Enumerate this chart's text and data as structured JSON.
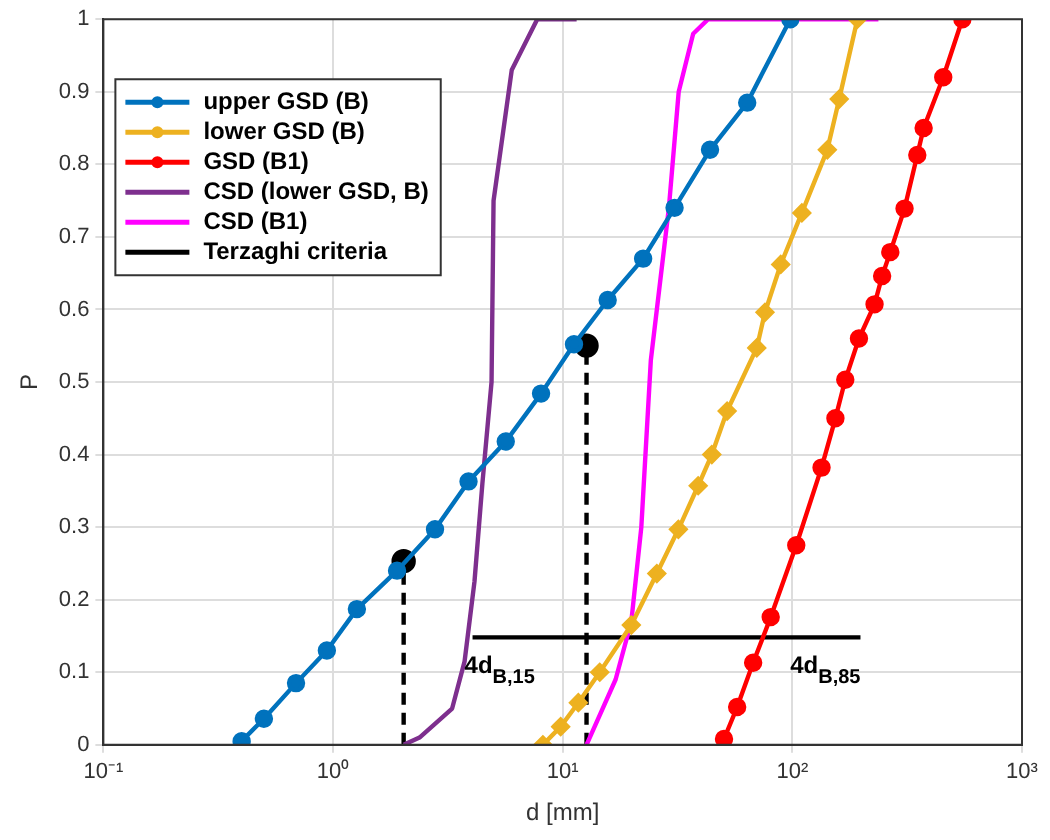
{
  "chart_data": {
    "type": "line",
    "xlabel": "d [mm]",
    "ylabel": "P",
    "log": "x",
    "grid": true,
    "legend": "top left",
    "xlim": [
      0.1,
      1000
    ],
    "xticks": [
      {
        "value": 0.1,
        "label": "10⁻¹"
      },
      {
        "value": 1,
        "label": "10⁰"
      },
      {
        "value": 10,
        "label": "10¹"
      },
      {
        "value": 100,
        "label": "10²"
      },
      {
        "value": 1000,
        "label": "10³"
      }
    ],
    "ylim": [
      0,
      1
    ],
    "yticks": [
      0,
      0.1,
      0.2,
      0.3,
      0.4,
      0.5,
      0.6,
      0.7,
      0.8,
      0.9,
      1
    ],
    "series": [
      {
        "name": "upper GSD (B)",
        "color": "#0072bd",
        "marker": "circle",
        "x": [
          0.4,
          0.5,
          0.69,
          0.94,
          1.27,
          1.9,
          2.78,
          3.89,
          5.65,
          8.05,
          11.2,
          15.7,
          22.4,
          30.7,
          43.8,
          63.6,
          98
        ],
        "values": [
          0.005,
          0.036,
          0.085,
          0.13,
          0.187,
          0.24,
          0.297,
          0.363,
          0.418,
          0.484,
          0.552,
          0.613,
          0.67,
          0.74,
          0.82,
          0.885,
          1
        ]
      },
      {
        "name": "lower GSD (B)",
        "color": "#edb120",
        "marker": "diamond",
        "x": [
          8.2,
          9.8,
          11.7,
          14.5,
          19.9,
          25.7,
          31.9,
          38.9,
          44.6,
          52,
          70,
          76,
          89,
          110,
          142,
          160,
          192
        ],
        "values": [
          0,
          0.025,
          0.058,
          0.1,
          0.165,
          0.236,
          0.297,
          0.357,
          0.4,
          0.46,
          0.547,
          0.596,
          0.662,
          0.733,
          0.82,
          0.89,
          1
        ]
      },
      {
        "name": "GSD (B1)",
        "color": "#ff0000",
        "marker": "circle",
        "x": [
          50.4,
          57.5,
          67.5,
          80.5,
          104,
          134,
          154,
          170,
          195,
          228,
          246,
          267,
          308,
          350,
          373,
          454,
          550
        ],
        "values": [
          0.008,
          0.052,
          0.113,
          0.176,
          0.275,
          0.382,
          0.45,
          0.503,
          0.56,
          0.607,
          0.646,
          0.679,
          0.739,
          0.813,
          0.85,
          0.92,
          1
        ]
      },
      {
        "name": "CSD (lower GSD, B)",
        "color": "#7e2f8e",
        "marker": "none",
        "x": [
          2.03,
          2.38,
          3.3,
          3.74,
          4.13,
          4.47,
          4.9,
          5.0,
          6.0,
          7.75,
          11.5
        ],
        "values": [
          0,
          0.01,
          0.05,
          0.115,
          0.225,
          0.36,
          0.5,
          0.75,
          0.93,
          1,
          1
        ]
      },
      {
        "name": "CSD (B1)",
        "color": "#ff00ff",
        "marker": "none",
        "x": [
          12.7,
          17,
          19.9,
          22,
          24.2,
          29,
          32,
          37,
          43,
          237
        ],
        "values": [
          0,
          0.09,
          0.17,
          0.3,
          0.53,
          0.74,
          0.9,
          0.98,
          1,
          1
        ]
      },
      {
        "name": "Terzaghi criteria",
        "color": "#000000",
        "marker": "none",
        "x": [
          4.05,
          198
        ],
        "values": [
          0.148,
          0.148
        ]
      },
      {
        "type": "line",
        "color": "#000000",
        "marker": "none",
        "line_style": "dashed",
        "x": [
          2.03,
          2.03
        ],
        "values": [
          0,
          0.253
        ]
      },
      {
        "type": "line",
        "color": "#000000",
        "marker": "none",
        "line_style": "dashed",
        "x": [
          12.7,
          12.7
        ],
        "values": [
          0,
          0.55
        ]
      },
      {
        "type": "scatter",
        "color": "#000000",
        "marker": "circle",
        "x": [
          2.03,
          12.7
        ],
        "values": [
          0.253,
          0.55
        ]
      }
    ],
    "annotations": [
      {
        "text": "4d$_{B,15}$",
        "x": 4.05,
        "y": 0.148
      },
      {
        "text": "4d$_{B,85}$",
        "x": 198,
        "y": 0.148
      }
    ]
  }
}
